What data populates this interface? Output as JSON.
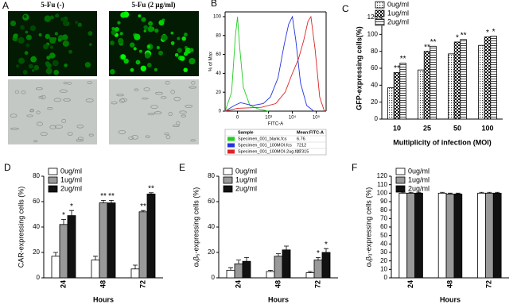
{
  "figure_a": {
    "panel": "A",
    "captions": [
      "5-Fu (-)",
      "5-Fu (2 μg/ml)"
    ]
  },
  "chart_data": [
    {
      "type": "line",
      "panel": "B",
      "ylabel": "% of Max",
      "xlabel": "FITC-A",
      "xscale": "asinh",
      "xlim": [
        -150,
        260000
      ],
      "xticks": [
        0,
        {
          "value": 1000,
          "label": "10³"
        },
        {
          "value": 10000,
          "label": "10⁴"
        },
        {
          "value": 100000,
          "label": "10⁵"
        }
      ],
      "ylim": [
        0,
        105
      ],
      "yticks": [
        0,
        20,
        40,
        60,
        80,
        100
      ],
      "legend_header": [
        "Sample",
        "Mean:FITC-A"
      ],
      "series": [
        {
          "name": "Specimen_001_blank.fcs",
          "mean": 6.76,
          "color": "#22cc22",
          "x": [
            -150,
            -60,
            -20,
            0,
            20,
            60,
            150,
            400,
            1000
          ],
          "values": [
            0,
            20,
            80,
            100,
            70,
            25,
            6,
            2,
            0
          ]
        },
        {
          "name": "Specimen_001_100MOI.fcs",
          "mean": 7212,
          "color": "#2233dd",
          "x": [
            -150,
            -30,
            30,
            200,
            600,
            1200,
            2500,
            4500,
            7000,
            10000,
            14000,
            22000,
            40000,
            80000
          ],
          "values": [
            0,
            6,
            9,
            6,
            8,
            15,
            35,
            70,
            92,
            100,
            75,
            30,
            6,
            0
          ]
        },
        {
          "name": "Specimen_001_100MOI-2ug.fcs",
          "mean": 27315,
          "color": "#dd2222",
          "x": [
            -150,
            0,
            500,
            2000,
            5000,
            10000,
            18000,
            30000,
            45000,
            60000,
            90000,
            140000,
            220000
          ],
          "values": [
            0,
            3,
            4,
            8,
            20,
            40,
            55,
            75,
            95,
            100,
            65,
            15,
            0
          ]
        }
      ]
    },
    {
      "type": "bar",
      "panel": "C",
      "ylabel": "GFP-expressing cells(%)",
      "xlabel": "Multiplicity of infection (MOI)",
      "legend": "upper left",
      "categories": [
        "10",
        "25",
        "50",
        "100"
      ],
      "ylim": [
        0,
        120
      ],
      "yticks": [
        0,
        20,
        40,
        60,
        80,
        100,
        120
      ],
      "series": [
        {
          "name": "0ug/ml",
          "pattern": "dots",
          "values": [
            37,
            58,
            77,
            87
          ],
          "significance": [
            null,
            null,
            null,
            null
          ]
        },
        {
          "name": "1ug/ml",
          "pattern": "checker",
          "values": [
            55,
            80,
            91,
            97
          ],
          "significance": [
            "**",
            "**",
            "*",
            "*"
          ]
        },
        {
          "name": "2ug/ml",
          "pattern": "lines",
          "values": [
            66,
            86,
            94,
            98
          ],
          "significance": [
            "**",
            "**",
            "**",
            "*"
          ]
        }
      ]
    },
    {
      "type": "bar",
      "panel": "D",
      "ylabel": "CAR-expressing cells (%)",
      "xlabel": "Hours",
      "legend": "upper left",
      "xtick_rotate": true,
      "categories": [
        "24",
        "48",
        "72"
      ],
      "ylim": [
        0,
        80
      ],
      "yticks": [
        0,
        20,
        40,
        60,
        80
      ],
      "series": [
        {
          "name": "0ug/ml",
          "color": "#ffffff",
          "values": [
            17,
            14,
            7
          ],
          "errors": [
            3,
            3,
            3
          ],
          "significance": [
            null,
            null,
            null
          ]
        },
        {
          "name": "1ug/ml",
          "color": "#999999",
          "values": [
            42,
            59,
            52
          ],
          "errors": [
            4,
            2,
            1
          ],
          "significance": [
            "*",
            "**",
            "**"
          ]
        },
        {
          "name": "2ug/ml",
          "color": "#111111",
          "values": [
            49,
            59,
            66
          ],
          "errors": [
            4,
            2,
            1
          ],
          "significance": [
            "*",
            "**",
            "**"
          ]
        }
      ]
    },
    {
      "type": "bar",
      "panel": "E",
      "ylabel": "αᵥβ₅-expressing cells (%)",
      "xlabel": "Hours",
      "legend": "upper left",
      "xtick_rotate": true,
      "categories": [
        "24",
        "48",
        "72"
      ],
      "ylim": [
        0,
        80
      ],
      "yticks": [
        0,
        20,
        40,
        60,
        80
      ],
      "series": [
        {
          "name": "0ug/ml",
          "color": "#ffffff",
          "values": [
            6,
            5,
            4
          ],
          "errors": [
            2,
            1,
            1
          ],
          "significance": [
            null,
            null,
            null
          ]
        },
        {
          "name": "1ug/ml",
          "color": "#999999",
          "values": [
            11,
            17,
            14
          ],
          "errors": [
            3,
            2,
            2
          ],
          "significance": [
            null,
            null,
            "*"
          ]
        },
        {
          "name": "2ug/ml",
          "color": "#111111",
          "values": [
            13,
            22,
            20
          ],
          "errors": [
            3,
            3,
            3
          ],
          "significance": [
            null,
            null,
            "*"
          ]
        }
      ]
    },
    {
      "type": "bar",
      "panel": "F",
      "ylabel": "αᵥβ₃-expressing cells (%)",
      "xlabel": "Hours",
      "legend": "upper left",
      "xtick_rotate": true,
      "categories": [
        "24",
        "48",
        "72"
      ],
      "ylim": [
        0,
        120
      ],
      "yticks": [
        0,
        10,
        20,
        30,
        40,
        50,
        60,
        70,
        80,
        90,
        100,
        110,
        120
      ],
      "series": [
        {
          "name": "0ug/ml",
          "color": "#ffffff",
          "values": [
            100,
            100,
            100
          ],
          "errors": [
            1,
            1,
            1
          ],
          "significance": [
            null,
            null,
            null
          ]
        },
        {
          "name": "1ug/ml",
          "color": "#999999",
          "values": [
            100,
            99,
            100
          ],
          "errors": [
            1,
            1,
            1
          ],
          "significance": [
            null,
            null,
            null
          ]
        },
        {
          "name": "2ug/ml",
          "color": "#111111",
          "values": [
            100,
            99,
            100
          ],
          "errors": [
            1,
            1,
            1
          ],
          "significance": [
            null,
            null,
            null
          ]
        }
      ]
    }
  ]
}
